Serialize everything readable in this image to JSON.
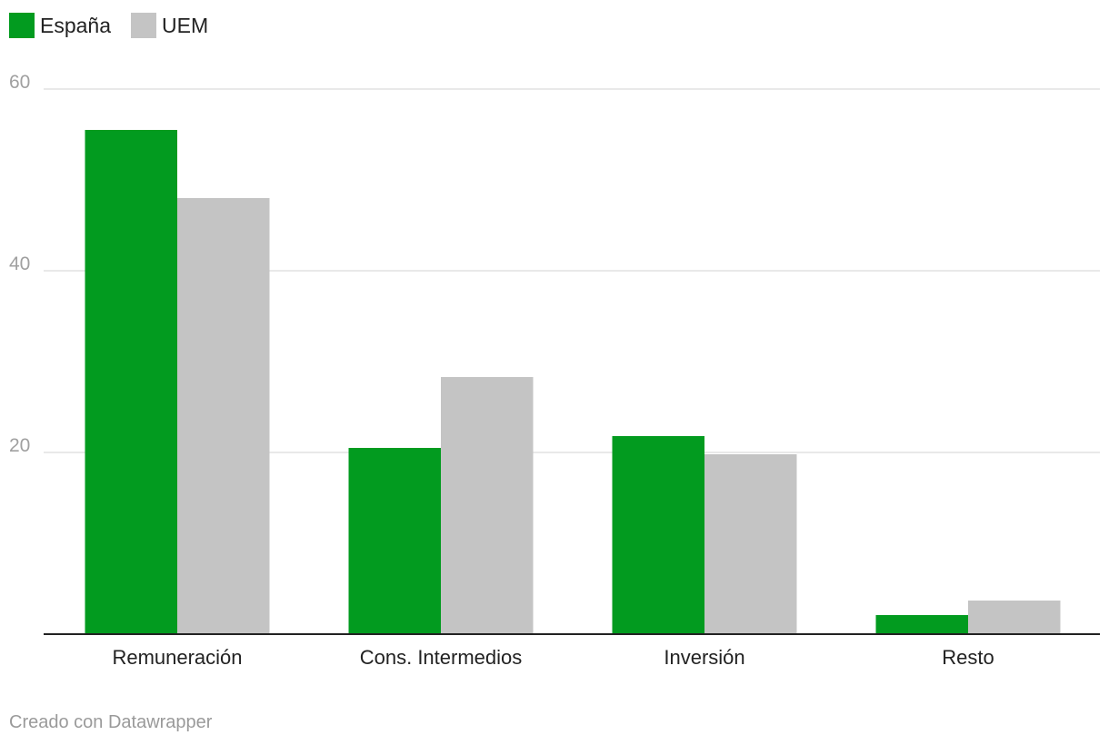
{
  "chart_data": {
    "type": "bar",
    "categories": [
      "Remuneración",
      "Cons. Intermedios",
      "Inversión",
      "Resto"
    ],
    "series": [
      {
        "name": "España",
        "values": [
          55.5,
          20.5,
          21.8,
          2.1
        ]
      },
      {
        "name": "UEM",
        "values": [
          48.0,
          28.3,
          19.8,
          3.7
        ]
      }
    ],
    "ylim": [
      0,
      60
    ],
    "yticks": [
      20,
      40,
      60
    ],
    "grid": true,
    "legend_position": "top-left",
    "xlabel": "",
    "ylabel": ""
  },
  "colors": {
    "España": "#029b1f",
    "UEM": "#c4c4c4"
  },
  "legend": [
    {
      "label": "España",
      "color": "#029b1f"
    },
    {
      "label": "UEM",
      "color": "#c4c4c4"
    }
  ],
  "footer": {
    "credit": "Creado con Datawrapper"
  }
}
